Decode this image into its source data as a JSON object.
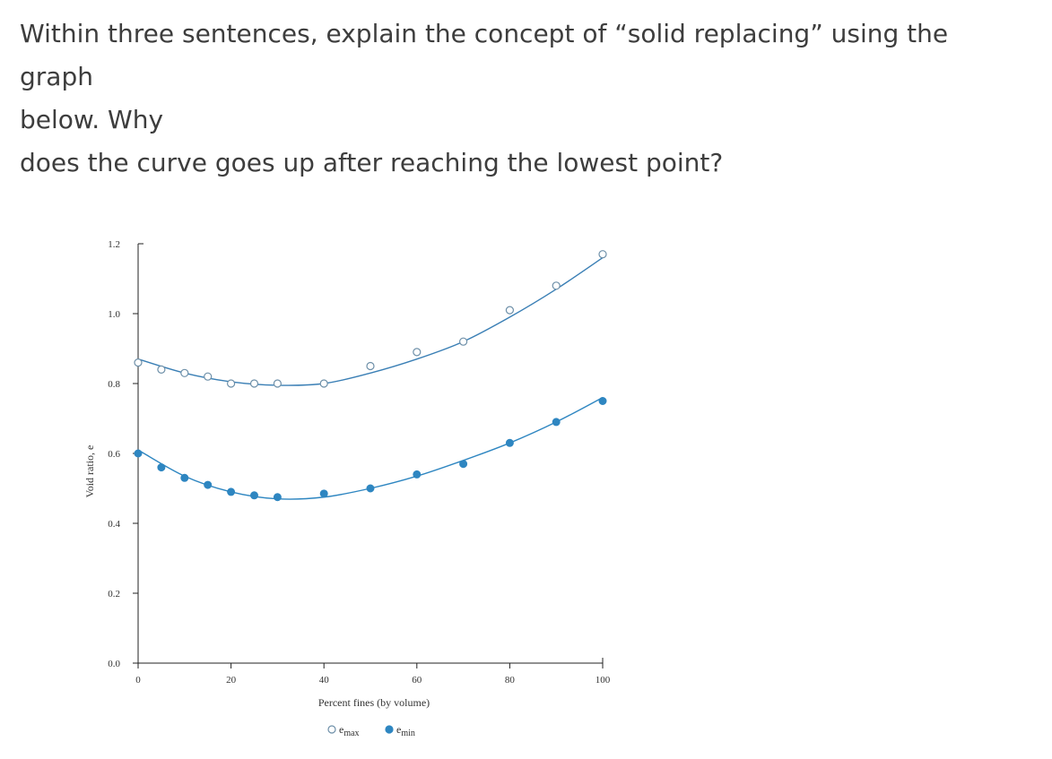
{
  "question": {
    "line1": "Within three sentences, explain the concept of “solid replacing” using the graph",
    "line2": "below. Why",
    "line3": "does the curve goes up after reaching the lowest point?"
  },
  "chart_data": {
    "type": "scatter",
    "xlabel": "Percent fines (by volume)",
    "ylabel": "Void ratio, e",
    "xlim": [
      0,
      100
    ],
    "ylim": [
      0.0,
      1.2
    ],
    "x_ticks": [
      "0",
      "20",
      "40",
      "60",
      "80",
      "100"
    ],
    "y_ticks": [
      "0.0",
      "0.2",
      "0.4",
      "0.6",
      "0.8",
      "1.0",
      "1.2"
    ],
    "series": [
      {
        "name": "e_max",
        "legend_main": "e",
        "legend_sub": "max",
        "marker": "open-circle",
        "color": "#3a7fb5",
        "x": [
          0,
          5,
          10,
          15,
          20,
          25,
          30,
          40,
          50,
          60,
          70,
          80,
          90,
          100
        ],
        "y": [
          0.86,
          0.84,
          0.83,
          0.82,
          0.8,
          0.8,
          0.8,
          0.8,
          0.85,
          0.89,
          0.92,
          1.01,
          1.08,
          1.17
        ]
      },
      {
        "name": "e_min",
        "legend_main": "e",
        "legend_sub": "min",
        "marker": "filled-circle",
        "color": "#2e86c1",
        "x": [
          0,
          5,
          10,
          15,
          20,
          25,
          30,
          40,
          50,
          60,
          70,
          80,
          90,
          100
        ],
        "y": [
          0.6,
          0.56,
          0.53,
          0.51,
          0.49,
          0.48,
          0.475,
          0.485,
          0.5,
          0.54,
          0.57,
          0.63,
          0.69,
          0.75
        ]
      }
    ],
    "trend_lines": [
      {
        "series": "e_max",
        "x": [
          0,
          10,
          20,
          30,
          40,
          50,
          60,
          70,
          80,
          90,
          100
        ],
        "y": [
          0.87,
          0.83,
          0.805,
          0.795,
          0.8,
          0.83,
          0.87,
          0.92,
          0.99,
          1.07,
          1.16
        ]
      },
      {
        "series": "e_min",
        "x": [
          0,
          10,
          20,
          30,
          40,
          50,
          60,
          70,
          80,
          90,
          100
        ],
        "y": [
          0.61,
          0.535,
          0.49,
          0.47,
          0.475,
          0.5,
          0.535,
          0.58,
          0.63,
          0.69,
          0.76
        ]
      }
    ],
    "legend_position": "bottom"
  }
}
